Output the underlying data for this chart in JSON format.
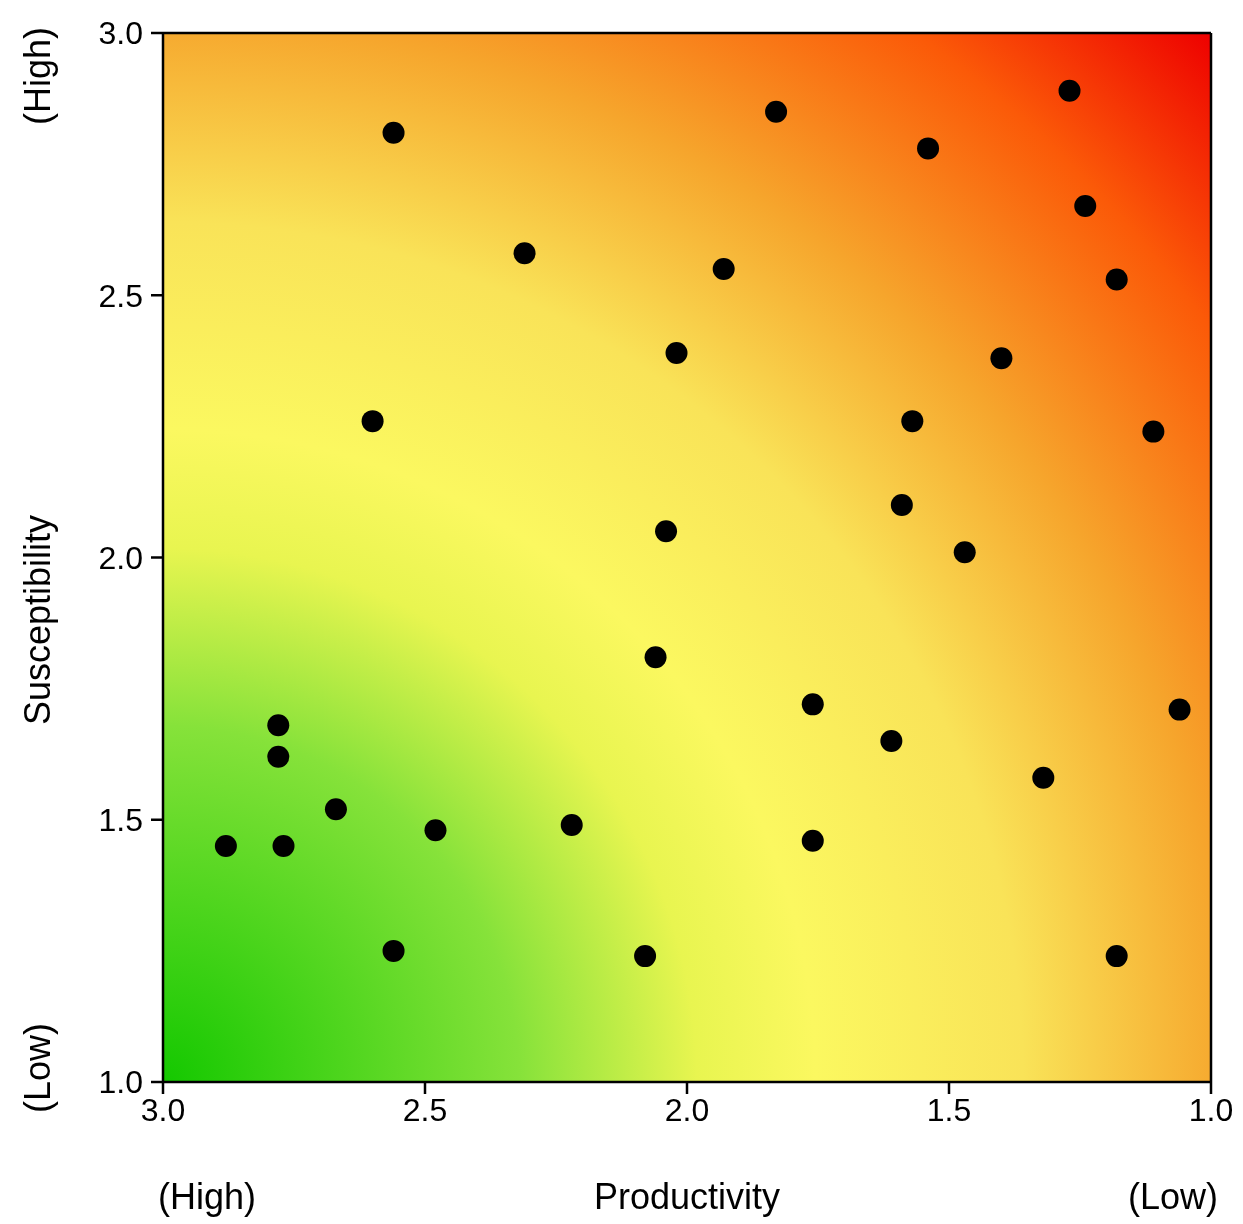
{
  "chart_data": {
    "type": "scatter",
    "xlabel": "Productivity",
    "ylabel": "Susceptibility",
    "annotations": [
      "(High)",
      "(Low)",
      "(High)",
      "(Low)"
    ],
    "x": [
      2.56,
      2.31,
      2.6,
      1.83,
      1.93,
      2.02,
      2.04,
      2.06,
      1.27,
      1.54,
      1.24,
      1.18,
      1.4,
      1.57,
      1.11,
      1.59,
      1.47,
      1.76,
      1.06,
      1.61,
      1.32,
      1.76,
      1.18,
      2.08,
      2.22,
      2.48,
      2.56,
      2.67,
      2.78,
      2.78,
      2.77,
      2.88
    ],
    "values": [
      2.81,
      2.58,
      2.26,
      2.85,
      2.55,
      2.39,
      2.05,
      1.81,
      2.89,
      2.78,
      2.67,
      2.53,
      2.38,
      2.26,
      2.24,
      2.1,
      2.01,
      1.72,
      1.71,
      1.65,
      1.58,
      1.46,
      1.24,
      1.24,
      1.49,
      1.48,
      1.25,
      1.52,
      1.68,
      1.62,
      1.45,
      1.45
    ],
    "color": "#000000",
    "marker": "circle",
    "xlim": [
      3.0,
      1.0
    ],
    "xticks": [
      {
        "value": 3.0,
        "label": "3.0"
      },
      {
        "value": 2.5,
        "label": "2.5"
      },
      {
        "value": 2.0,
        "label": "2.0"
      },
      {
        "value": 1.5,
        "label": "1.5"
      },
      {
        "value": 1.0,
        "label": "1.0"
      }
    ],
    "ylim": [
      1.0,
      3.0
    ],
    "yticks": [
      {
        "value": 1.0,
        "label": "1.0"
      },
      {
        "value": 1.5,
        "label": "1.5"
      },
      {
        "value": 2.0,
        "label": "2.0"
      },
      {
        "value": 2.5,
        "label": "2.5"
      },
      {
        "value": 3.0,
        "label": "3.0"
      }
    ],
    "legend": false
  }
}
